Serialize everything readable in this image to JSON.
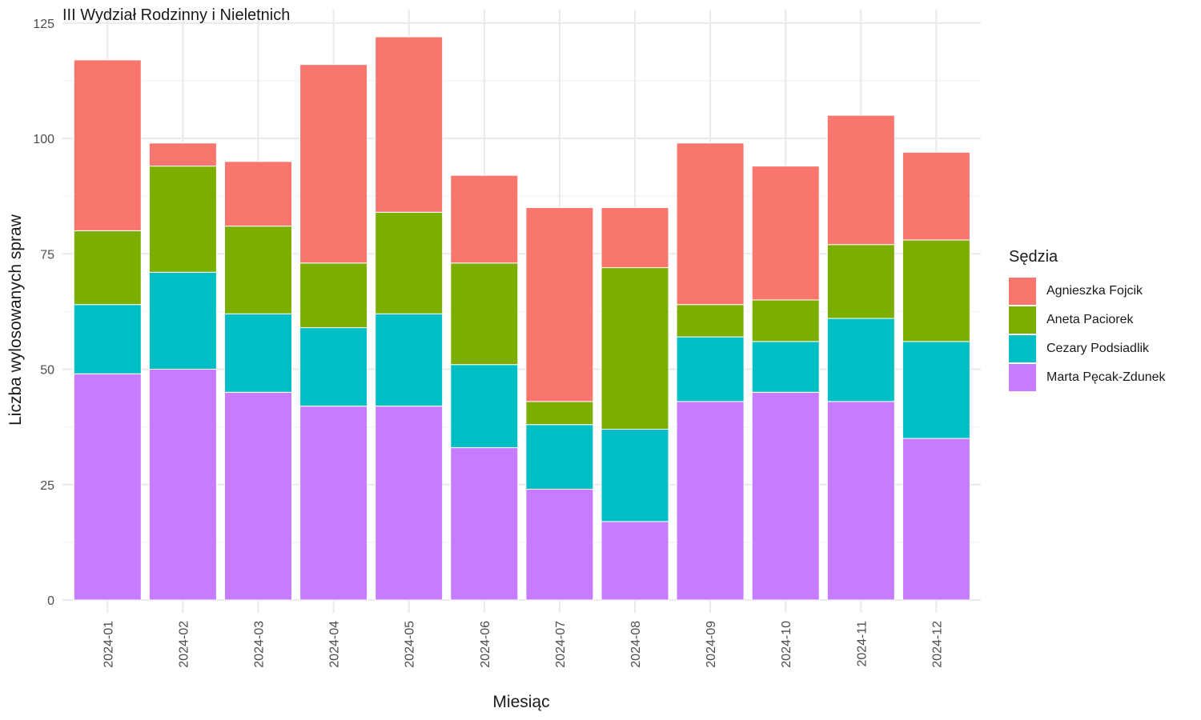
{
  "chart_data": {
    "type": "bar",
    "stacked": true,
    "title": "III Wydział Rodzinny i Nieletnich",
    "xlabel": "Miesiąc",
    "ylabel": "Liczba wylosowanych spraw",
    "ylim": [
      0,
      125
    ],
    "yticks": [
      0,
      25,
      50,
      75,
      100,
      125
    ],
    "grid": true,
    "legend_title": "Sędzia",
    "legend_position": "right",
    "categories": [
      "2024-01",
      "2024-02",
      "2024-03",
      "2024-04",
      "2024-05",
      "2024-06",
      "2024-07",
      "2024-08",
      "2024-09",
      "2024-10",
      "2024-11",
      "2024-12"
    ],
    "series": [
      {
        "name": "Marta Pęcak-Zdunek",
        "color": "#C77CFF",
        "values": [
          49,
          50,
          45,
          42,
          42,
          33,
          24,
          17,
          43,
          45,
          43,
          35
        ]
      },
      {
        "name": "Cezary Podsiadlik",
        "color": "#00BFC4",
        "values": [
          15,
          21,
          17,
          17,
          20,
          18,
          14,
          20,
          14,
          11,
          18,
          21
        ]
      },
      {
        "name": "Aneta Paciorek",
        "color": "#7CAE00",
        "values": [
          16,
          23,
          19,
          14,
          22,
          22,
          5,
          35,
          7,
          9,
          16,
          22
        ]
      },
      {
        "name": "Agnieszka Fojcik",
        "color": "#F8766D",
        "values": [
          37,
          5,
          14,
          43,
          38,
          19,
          42,
          13,
          35,
          29,
          28,
          19
        ]
      }
    ],
    "legend_order": [
      "Agnieszka Fojcik",
      "Aneta Paciorek",
      "Cezary Podsiadlik",
      "Marta Pęcak-Zdunek"
    ]
  }
}
